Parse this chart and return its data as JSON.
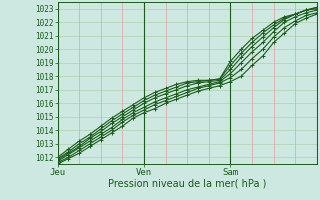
{
  "title": "",
  "xlabel": "Pression niveau de la mer( hPa )",
  "ylabel": "",
  "ylim": [
    1011.5,
    1023.5
  ],
  "xlim": [
    0,
    72
  ],
  "yticks": [
    1012,
    1013,
    1014,
    1015,
    1016,
    1017,
    1018,
    1019,
    1020,
    1021,
    1022,
    1023
  ],
  "xtick_positions": [
    0,
    24,
    48
  ],
  "xtick_labels": [
    "Jeu",
    "Ven",
    "Sam"
  ],
  "bg_color": "#cce8e0",
  "line_color": "#1a5c1a",
  "grid_color_v": "#e8a0a0",
  "grid_color_h": "#b0d0b0",
  "lines": [
    {
      "x": [
        0,
        3,
        6,
        9,
        12,
        15,
        18,
        21,
        24,
        27,
        30,
        33,
        36,
        39,
        42,
        45,
        48,
        51,
        54,
        57,
        60,
        63,
        66,
        69,
        72
      ],
      "y": [
        1011.5,
        1011.9,
        1012.3,
        1012.8,
        1013.3,
        1013.8,
        1014.3,
        1014.9,
        1015.3,
        1015.6,
        1016.0,
        1016.3,
        1016.6,
        1016.9,
        1017.1,
        1017.3,
        1017.6,
        1018.0,
        1018.8,
        1019.5,
        1020.5,
        1021.2,
        1021.9,
        1022.3,
        1022.6
      ]
    },
    {
      "x": [
        0,
        3,
        6,
        9,
        12,
        15,
        18,
        21,
        24,
        27,
        30,
        33,
        36,
        39,
        42,
        45,
        48,
        51,
        54,
        57,
        60,
        63,
        66,
        69,
        72
      ],
      "y": [
        1011.6,
        1012.0,
        1012.5,
        1013.0,
        1013.5,
        1014.0,
        1014.6,
        1015.1,
        1015.5,
        1015.9,
        1016.2,
        1016.5,
        1016.8,
        1017.1,
        1017.3,
        1017.5,
        1017.9,
        1018.5,
        1019.3,
        1020.0,
        1020.9,
        1021.6,
        1022.1,
        1022.5,
        1022.7
      ]
    },
    {
      "x": [
        0,
        3,
        6,
        9,
        12,
        15,
        18,
        21,
        24,
        27,
        30,
        33,
        36,
        39,
        42,
        45,
        48,
        51,
        54,
        57,
        60,
        63,
        66,
        69,
        72
      ],
      "y": [
        1011.7,
        1012.2,
        1012.7,
        1013.2,
        1013.7,
        1014.2,
        1014.8,
        1015.3,
        1015.7,
        1016.1,
        1016.4,
        1016.7,
        1017.0,
        1017.2,
        1017.4,
        1017.6,
        1018.2,
        1019.0,
        1019.8,
        1020.5,
        1021.3,
        1022.0,
        1022.4,
        1022.7,
        1022.9
      ]
    },
    {
      "x": [
        0,
        3,
        6,
        9,
        12,
        15,
        18,
        21,
        24,
        27,
        30,
        33,
        36,
        39,
        42,
        45,
        48,
        51,
        54,
        57,
        60,
        63,
        66,
        69,
        72
      ],
      "y": [
        1011.8,
        1012.3,
        1012.8,
        1013.4,
        1013.9,
        1014.5,
        1015.0,
        1015.5,
        1016.0,
        1016.4,
        1016.7,
        1017.0,
        1017.3,
        1017.5,
        1017.6,
        1017.7,
        1018.5,
        1019.4,
        1020.2,
        1020.9,
        1021.6,
        1022.2,
        1022.6,
        1022.9,
        1023.1
      ]
    },
    {
      "x": [
        0,
        3,
        6,
        9,
        12,
        15,
        18,
        21,
        24,
        27,
        30,
        33,
        36,
        39,
        42,
        45,
        48,
        51,
        54,
        57,
        60,
        63,
        66,
        69,
        72
      ],
      "y": [
        1011.9,
        1012.4,
        1013.0,
        1013.5,
        1014.1,
        1014.7,
        1015.2,
        1015.7,
        1016.2,
        1016.6,
        1016.9,
        1017.2,
        1017.5,
        1017.6,
        1017.7,
        1017.8,
        1018.8,
        1019.7,
        1020.5,
        1021.2,
        1021.8,
        1022.3,
        1022.6,
        1022.9,
        1023.1
      ]
    },
    {
      "x": [
        0,
        3,
        6,
        9,
        12,
        15,
        18,
        21,
        24,
        27,
        30,
        33,
        36,
        39,
        42,
        45,
        48,
        51,
        54,
        57,
        60,
        63,
        66,
        69,
        72
      ],
      "y": [
        1012.0,
        1012.6,
        1013.2,
        1013.7,
        1014.3,
        1014.9,
        1015.4,
        1015.9,
        1016.4,
        1016.8,
        1017.1,
        1017.4,
        1017.6,
        1017.7,
        1017.7,
        1017.8,
        1019.1,
        1020.0,
        1020.8,
        1021.4,
        1022.0,
        1022.4,
        1022.6,
        1022.9,
        1023.0
      ]
    }
  ]
}
